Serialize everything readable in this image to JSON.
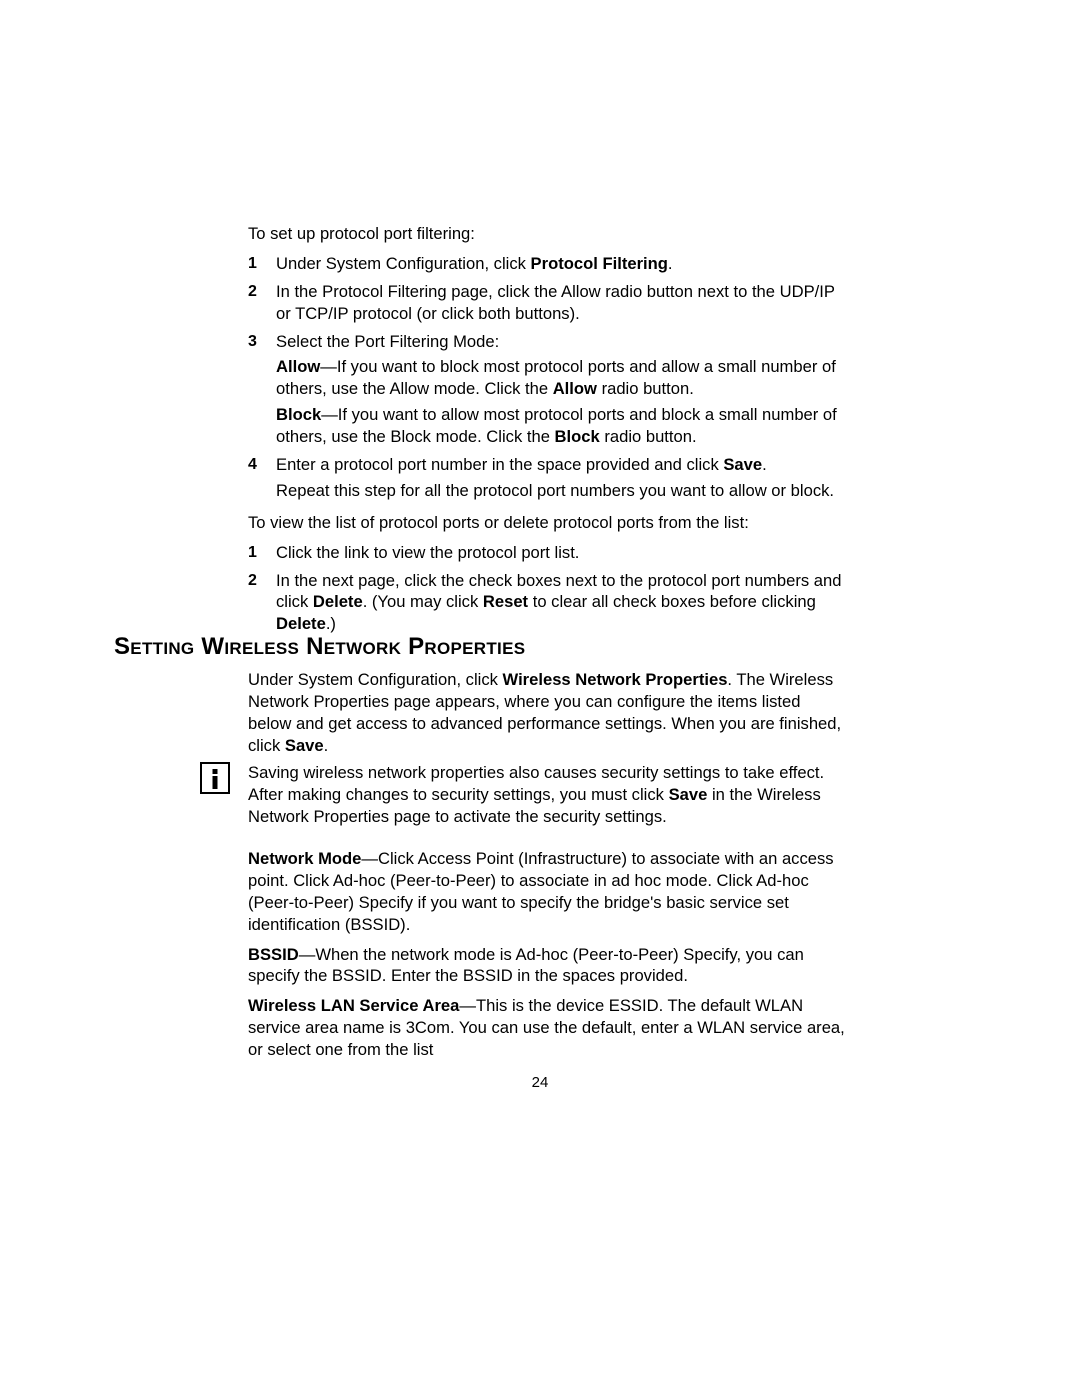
{
  "section1": {
    "intro": "To set up protocol port filtering:",
    "steps": [
      {
        "n": "1",
        "runs": [
          {
            "t": "Under System Configuration, click "
          },
          {
            "t": "Protocol Filtering",
            "style": "sans-b"
          },
          {
            "t": "."
          }
        ]
      },
      {
        "n": "2",
        "runs": [
          {
            "t": "In the Protocol Filtering page, click the Allow radio button next to the UDP/IP or TCP/IP protocol (or click both buttons)."
          }
        ]
      },
      {
        "n": "3",
        "runs": [
          {
            "t": "Select the Port Filtering Mode:"
          }
        ],
        "sub": [
          [
            {
              "t": "Allow",
              "style": "b"
            },
            {
              "t": "—If you want to block most protocol ports and allow a small number of others, use the Allow mode. Click the "
            },
            {
              "t": "Allow",
              "style": "sans-b"
            },
            {
              "t": " radio button."
            }
          ],
          [
            {
              "t": "Block",
              "style": "b"
            },
            {
              "t": "—If you want to allow most protocol ports and block a small number of others, use the Block mode. Click the "
            },
            {
              "t": "Block",
              "style": "sans-b"
            },
            {
              "t": " radio button."
            }
          ]
        ]
      },
      {
        "n": "4",
        "runs": [
          {
            "t": "Enter a protocol port number in the space provided and click "
          },
          {
            "t": "Save",
            "style": "sans-b"
          },
          {
            "t": "."
          }
        ],
        "sub": [
          [
            {
              "t": "Repeat this step for all the protocol port numbers you want to allow or block."
            }
          ]
        ]
      }
    ],
    "intro2": "To view the list of protocol ports or delete protocol ports from the list:",
    "steps2": [
      {
        "n": "1",
        "runs": [
          {
            "t": "Click the link to view the protocol port list."
          }
        ]
      },
      {
        "n": "2",
        "runs": [
          {
            "t": "In the next page, click the check boxes next to the protocol port numbers and click "
          },
          {
            "t": "Delete",
            "style": "sans-b"
          },
          {
            "t": ". (You may click "
          },
          {
            "t": "Reset",
            "style": "sans-b"
          },
          {
            "t": " to clear all check boxes before clicking "
          },
          {
            "t": "Delete",
            "style": "sans-b"
          },
          {
            "t": ".)"
          }
        ]
      }
    ]
  },
  "heading": "Setting Wireless Network Properties",
  "intro_after_heading_runs": [
    {
      "t": "Under System Configuration, click "
    },
    {
      "t": "Wireless Network Properties",
      "style": "sans-b"
    },
    {
      "t": ". The Wireless Network Properties page appears, where you can configure the items listed below and get access to advanced performance settings. When you are finished, click "
    },
    {
      "t": "Save",
      "style": "sans-b"
    },
    {
      "t": "."
    }
  ],
  "note_runs": [
    {
      "t": "Saving wireless network properties also causes security settings to take effect. After making changes to security settings, you must click "
    },
    {
      "t": "Save",
      "style": "sans-b"
    },
    {
      "t": " in the Wireless Network Properties page to activate the security settings."
    }
  ],
  "props": [
    [
      {
        "t": "Network Mode",
        "style": "b"
      },
      {
        "t": "—Click Access Point (Infrastructure) to associate with an access point. Click Ad-hoc (Peer-to-Peer) to associate in ad hoc mode. Click Ad-hoc (Peer-to-Peer) Specify if you want to specify the bridge's basic service set identification (BSSID)."
      }
    ],
    [
      {
        "t": "BSSID",
        "style": "b"
      },
      {
        "t": "—When the network mode is Ad-hoc (Peer-to-Peer) Specify, you can specify the BSSID. Enter the BSSID in the spaces provided."
      }
    ],
    [
      {
        "t": "Wireless LAN Service Area",
        "style": "b"
      },
      {
        "t": "—This is the device ESSID. The default WLAN service area name is 3Com. You can use the default, enter a WLAN service area, or select one from the list"
      }
    ]
  ],
  "page_number": "24"
}
